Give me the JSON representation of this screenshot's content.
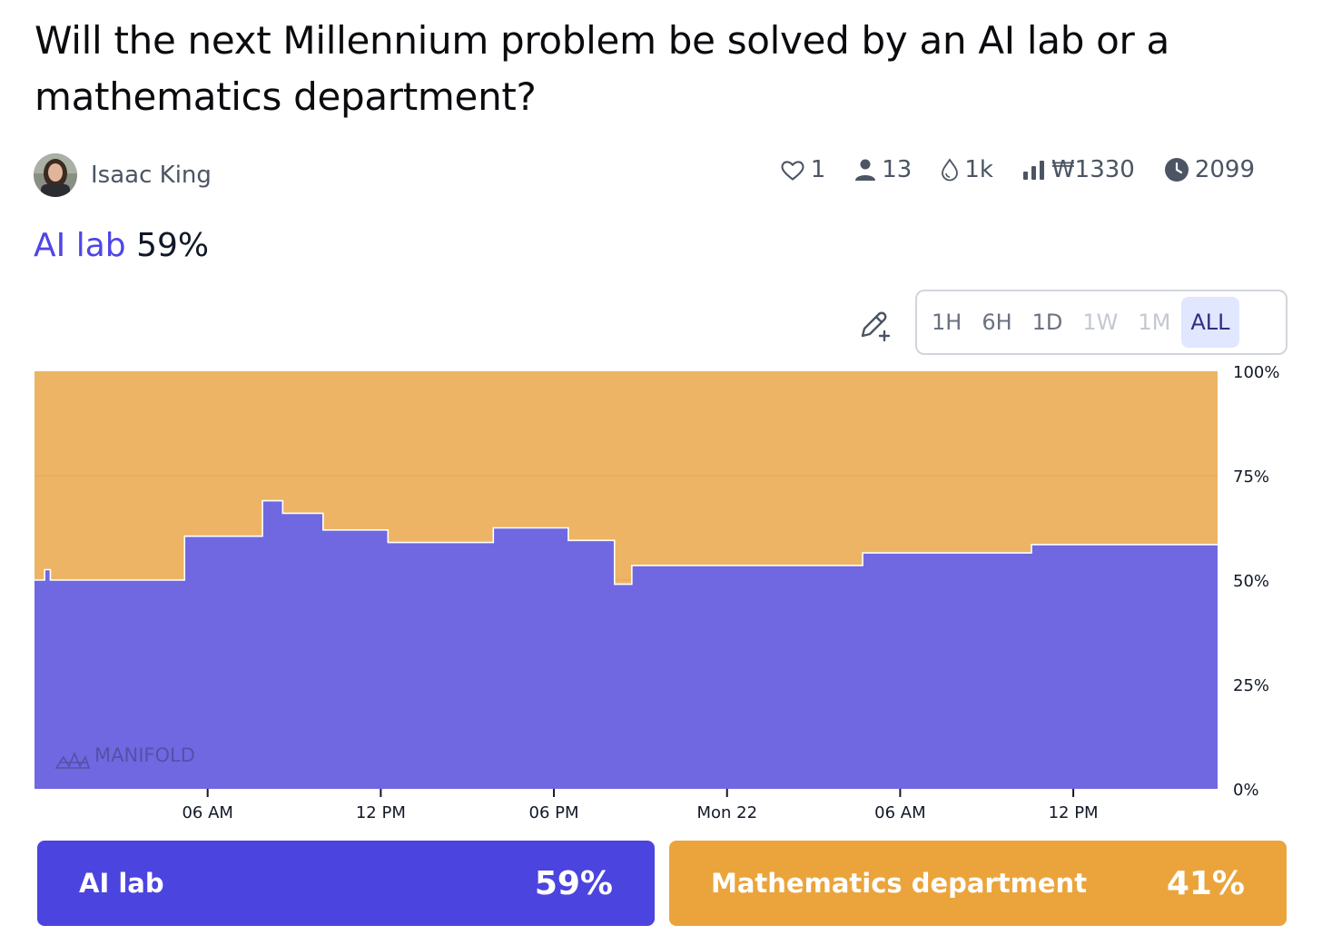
{
  "question": {
    "title": "Will the next Millennium problem be solved by an AI lab or a mathematics department?"
  },
  "creator": {
    "name": "Isaac King"
  },
  "stats": {
    "likes": "1",
    "traders": "13",
    "liquidity": "1k",
    "volume": "₩1330",
    "close": "2099"
  },
  "probability": {
    "answer": "AI lab",
    "value": "59%"
  },
  "time_ranges": {
    "options": [
      "1H",
      "6H",
      "1D",
      "1W",
      "1M",
      "ALL"
    ],
    "selected": "ALL"
  },
  "watermark": "MANIFOLD",
  "chart_data": {
    "type": "area",
    "title": "",
    "xlabel": "",
    "ylabel": "",
    "ylim": [
      0,
      1
    ],
    "y_ticks": [
      "0%",
      "25%",
      "50%",
      "75%",
      "100%"
    ],
    "x_ticks": [
      {
        "label": "06 AM",
        "h": 6
      },
      {
        "label": "12 PM",
        "h": 12
      },
      {
        "label": "06 PM",
        "h": 18
      },
      {
        "label": "Mon 22",
        "h": 24
      },
      {
        "label": "06 AM",
        "h": 30
      },
      {
        "label": "12 PM",
        "h": 36
      }
    ],
    "x_range_hours": [
      0,
      41
    ],
    "series": [
      {
        "name": "AI lab",
        "color": "#6f68e1",
        "points": [
          [
            0.0,
            0.5
          ],
          [
            0.35,
            0.525
          ],
          [
            0.55,
            0.5
          ],
          [
            5.2,
            0.605
          ],
          [
            7.9,
            0.69
          ],
          [
            8.6,
            0.66
          ],
          [
            10.0,
            0.62
          ],
          [
            12.25,
            0.59
          ],
          [
            15.9,
            0.625
          ],
          [
            18.5,
            0.595
          ],
          [
            20.1,
            0.49
          ],
          [
            20.7,
            0.535
          ],
          [
            28.7,
            0.565
          ],
          [
            34.55,
            0.585
          ],
          [
            41.0,
            0.585
          ]
        ]
      },
      {
        "name": "Mathematics department",
        "color": "#ecb464"
      }
    ]
  },
  "answers": [
    {
      "label": "AI lab",
      "pct": "59%",
      "color": "#4c44de"
    },
    {
      "label": "Mathematics department",
      "pct": "41%",
      "color": "#eba43b"
    }
  ]
}
